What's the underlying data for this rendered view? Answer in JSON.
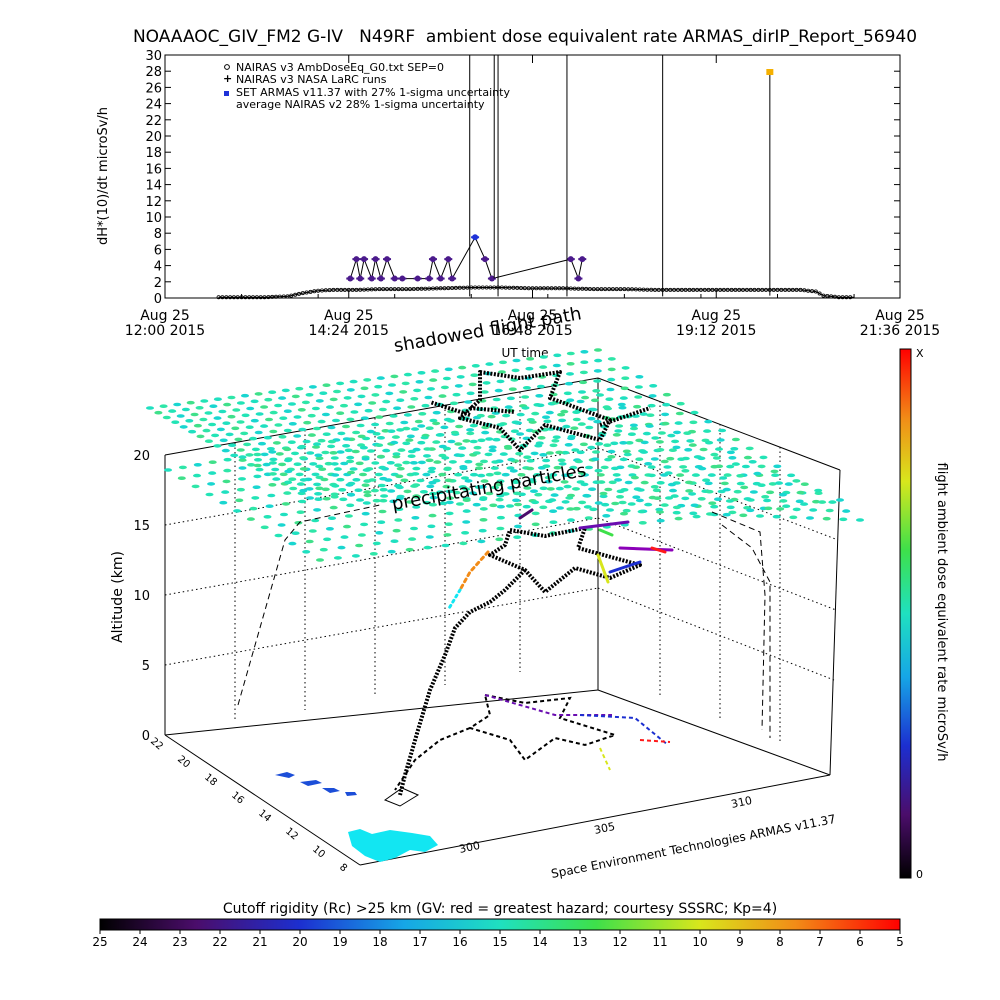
{
  "header": {
    "title": "NOAAAOC_GIV_FM2 G-IV   N49RF  ambient dose equivalent rate ARMAS_dirIP_Report_56940"
  },
  "chart_data": [
    {
      "type": "line",
      "ylabel": "dH*(10)/dt microSv/h",
      "xlabel": "UT time",
      "ylim": [
        0,
        30
      ],
      "yticks": [
        0,
        2,
        4,
        6,
        8,
        10,
        12,
        14,
        16,
        18,
        20,
        22,
        24,
        26,
        28,
        30
      ],
      "xlim": [
        12.0,
        21.6
      ],
      "xticks": [
        {
          "x": 12.0,
          "line1": "Aug 25",
          "line2": "12:00 2015"
        },
        {
          "x": 14.4,
          "line1": "Aug 25",
          "line2": "14:24 2015"
        },
        {
          "x": 16.8,
          "line1": "Aug 25",
          "line2": "16:48 2015"
        },
        {
          "x": 19.2,
          "line1": "Aug 25",
          "line2": "19:12 2015"
        },
        {
          "x": 21.6,
          "line1": "Aug 25",
          "line2": "21:36 2015"
        }
      ],
      "legend": [
        {
          "symbol": "circle",
          "label": "NAIRAS v3 AmbDoseEq_G0.txt SEP=0"
        },
        {
          "symbol": "plus",
          "label": "NAIRAS v3 NASA LaRC runs"
        },
        {
          "symbol": "square",
          "label": "SET ARMAS v11.37 with 27% 1-sigma uncertainty"
        },
        {
          "symbol": "none",
          "label": "average NAIRAS v2 28% 1-sigma uncertainty"
        }
      ],
      "series": [
        {
          "name": "NAIRAS v3 AmbDoseEq_G0.txt SEP=0",
          "x": [
            12.7,
            13.0,
            13.3,
            13.6,
            13.8,
            14.0,
            14.2,
            14.5,
            14.8,
            15.2,
            15.6,
            16.0,
            16.4,
            16.8,
            17.2,
            17.6,
            18.0,
            18.4,
            18.8,
            19.2,
            19.6,
            20.0,
            20.3,
            20.5,
            20.6,
            20.8,
            21.0
          ],
          "y": [
            0.1,
            0.1,
            0.1,
            0.2,
            0.6,
            0.9,
            1.0,
            1.0,
            1.1,
            1.1,
            1.2,
            1.3,
            1.3,
            1.2,
            1.2,
            1.1,
            1.1,
            1.0,
            1.0,
            1.0,
            1.0,
            1.0,
            1.0,
            0.8,
            0.3,
            0.1,
            0.1
          ]
        },
        {
          "name": "SET ARMAS v11.37 with 27% 1-sigma uncertainty",
          "x": [
            14.42,
            14.5,
            14.55,
            14.6,
            14.7,
            14.75,
            14.82,
            14.9,
            15.0,
            15.1,
            15.3,
            15.45,
            15.5,
            15.6,
            15.7,
            15.75,
            16.05,
            16.18,
            16.27,
            17.3,
            17.4,
            17.45
          ],
          "y": [
            2.4,
            4.8,
            2.4,
            4.8,
            2.4,
            4.8,
            2.4,
            4.8,
            2.4,
            2.4,
            2.4,
            2.4,
            4.8,
            2.4,
            4.8,
            2.4,
            7.5,
            4.8,
            2.4,
            4.8,
            2.4,
            4.8
          ]
        },
        {
          "name": "ARMAS high reading",
          "x": [
            19.9
          ],
          "y": [
            27.9
          ]
        }
      ]
    },
    {
      "type": "scatter",
      "zlabel": "Altitude (km)",
      "zticks": [
        0,
        5,
        10,
        15,
        20
      ],
      "yticks": [
        "22",
        "20",
        "18",
        "16",
        "14",
        "12",
        "10",
        "8"
      ],
      "xticks": [
        "300",
        "305",
        "310"
      ],
      "colorbar_label": "flight ambient dose equivalent rate microSv/h",
      "colorbar_top": "X",
      "colorbar_bottom": "0",
      "annotations": [
        "shadowed flight path",
        "precipitating particles"
      ],
      "credit": "Space Environment Technologies ARMAS v11.37"
    },
    {
      "type": "heatmap",
      "title": "Cutoff rigidity (Rc) >25 km (GV: red = greatest hazard; courtesy SSSRC; Kp=4)",
      "ticks": [
        "25",
        "24",
        "23",
        "22",
        "21",
        "20",
        "19",
        "18",
        "17",
        "16",
        "15",
        "14",
        "13",
        "12",
        "11",
        "10",
        "9",
        "8",
        "7",
        "6",
        "5"
      ]
    }
  ]
}
